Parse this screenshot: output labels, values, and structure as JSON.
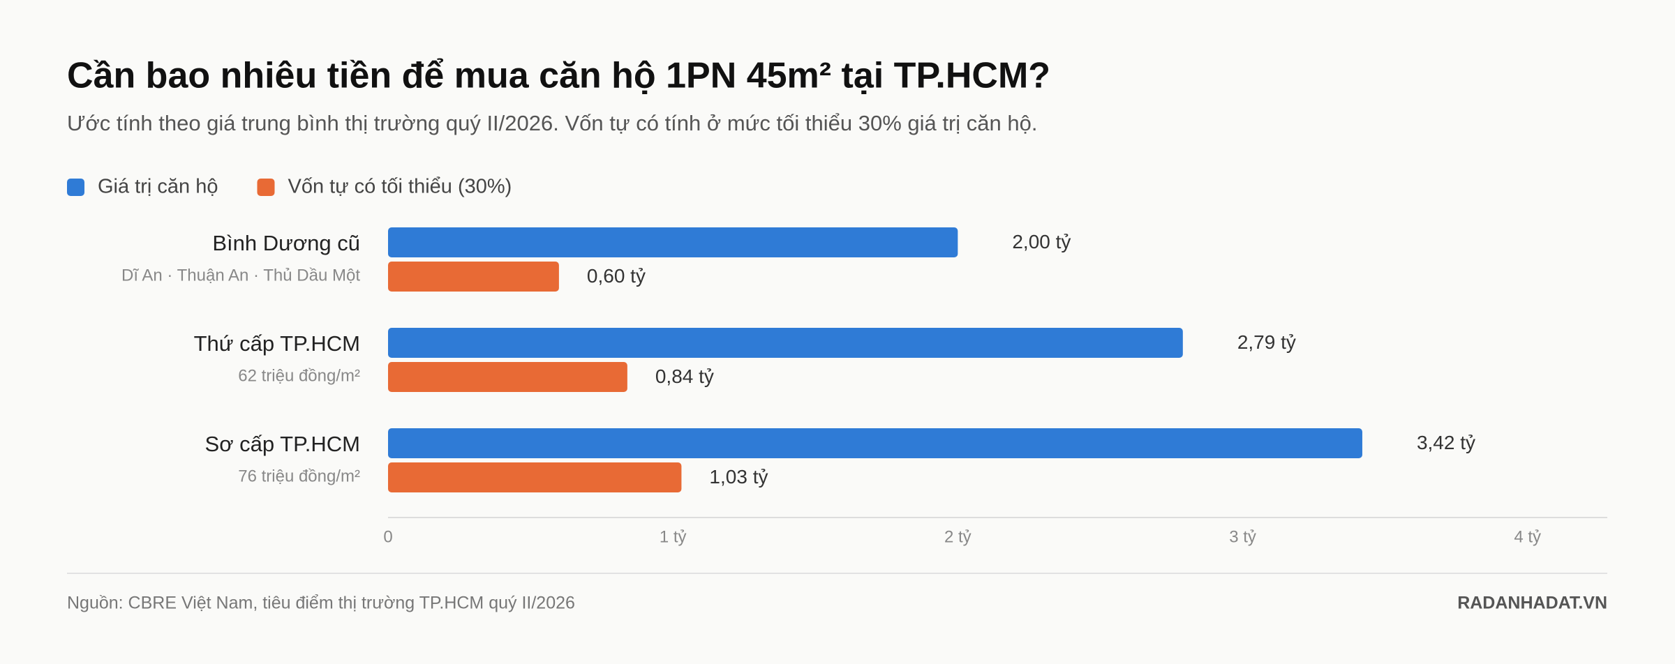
{
  "chart_data": {
    "type": "hbar",
    "title": "Cần bao nhiêu tiền để mua căn hộ 1PN 45m² tại TP.HCM?",
    "subtitle": "Ước tính theo giá trung bình thị trường quý II/2026. Vốn tự có tính ở mức tối thiểu 30% giá trị căn hộ.",
    "categories": [
      "Bình Dương cũ",
      "Thứ cấp TP.HCM",
      "Sơ cấp TP.HCM"
    ],
    "category_notes": [
      "Dĩ An · Thuận An · Thủ Dầu Một",
      "62 triệu đồng/m²",
      "76 triệu đồng/m²"
    ],
    "series": [
      {
        "name": "Giá trị căn hộ",
        "color": "#2f7bd6",
        "values": [
          2.0,
          2.79,
          3.42
        ],
        "value_labels": [
          "2,00 tỷ",
          "2,79 tỷ",
          "3,42 tỷ"
        ]
      },
      {
        "name": "Vốn tự có tối thiểu (30%)",
        "color": "#e86a35",
        "values": [
          0.6,
          0.84,
          1.03
        ],
        "value_labels": [
          "0,60 tỷ",
          "0,84 tỷ",
          "1,03 tỷ"
        ]
      }
    ],
    "xlim": [
      0,
      4.28
    ],
    "xticks": [
      0,
      {
        "value": 1,
        "label": "1 tỷ"
      },
      {
        "value": 2,
        "label": "2 tỷ"
      },
      {
        "value": 3,
        "label": "3 tỷ"
      },
      {
        "value": 4,
        "label": "4 tỷ"
      }
    ],
    "legend": "top-left",
    "source": "Nguồn: CBRE Việt Nam, tiêu điểm thị trường TP.HCM quý II/2026",
    "brand": "RADANHADAT.VN"
  }
}
